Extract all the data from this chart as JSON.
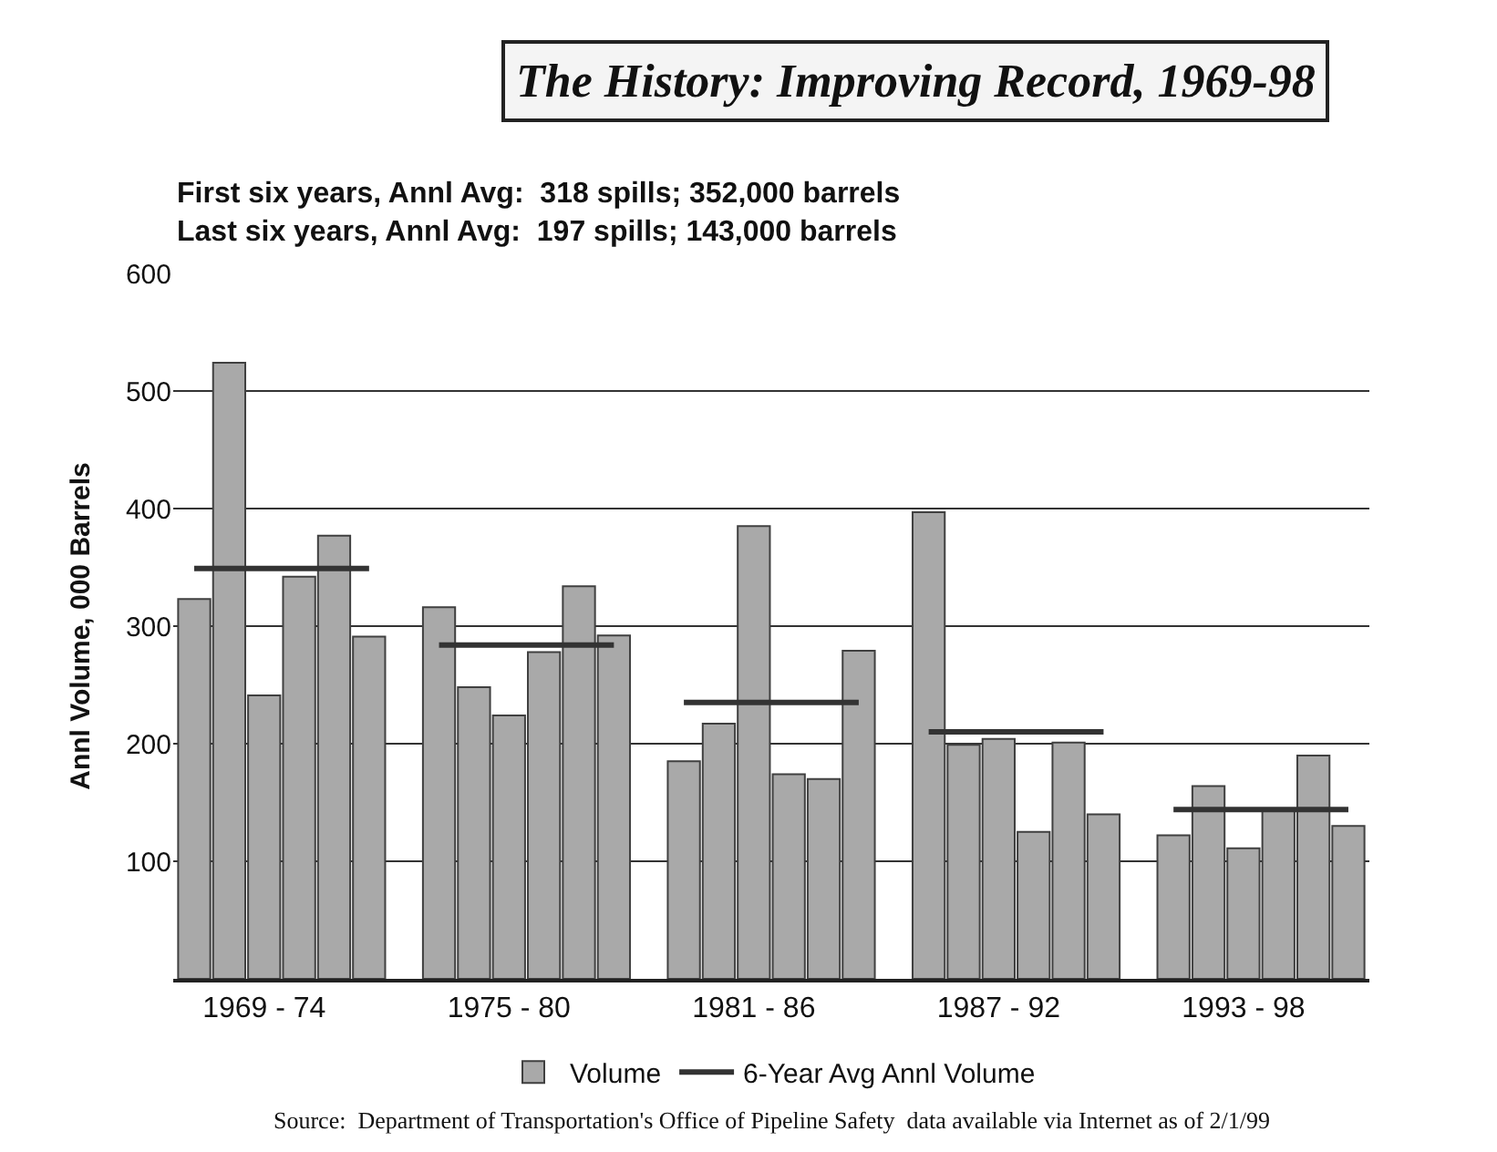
{
  "chart_data": {
    "type": "bar",
    "title": "The History: Improving Record, 1969-98",
    "subtitle": "First six years, Annl Avg:  318 spills; 352,000 barrels\nLast six years, Annl Avg:  197 spills; 143,000 barrels",
    "ylabel": "Annl Volume, 000 Barrels",
    "categories": [
      null,
      null,
      "1969 - 74",
      null,
      null,
      null,
      null,
      null,
      null,
      "1975 - 80",
      null,
      null,
      null,
      null,
      null,
      null,
      "1981 - 86",
      null,
      null,
      null,
      null,
      null,
      null,
      "1987 - 92",
      null,
      null,
      null,
      null,
      null,
      null,
      "1993 - 98",
      null,
      null,
      null
    ],
    "series": [
      {
        "name": "Volume",
        "color": "#a9a9a9",
        "values": [
          323,
          524,
          241,
          342,
          377,
          291,
          null,
          316,
          248,
          224,
          278,
          334,
          292,
          null,
          185,
          217,
          385,
          174,
          170,
          279,
          null,
          397,
          199,
          204,
          125,
          201,
          140,
          null,
          122,
          164,
          111,
          144,
          190,
          130
        ]
      },
      {
        "name": "6-Year Avg Annl Volume",
        "type": "line",
        "color": "#333333",
        "values": [
          349,
          349,
          349,
          349,
          349,
          349,
          null,
          null,
          null,
          null,
          null,
          null,
          null,
          null,
          null,
          null,
          null,
          null,
          null,
          null,
          null,
          null,
          null,
          null,
          null,
          null,
          null,
          null,
          null,
          null,
          null,
          null,
          null,
          null
        ]
      },
      {
        "type": "line",
        "color": "#333333",
        "values": [
          null,
          null,
          null,
          null,
          null,
          null,
          null,
          284,
          284,
          284,
          284,
          284,
          284,
          null,
          null,
          null,
          null,
          null,
          null,
          null,
          null,
          null,
          null,
          null,
          null,
          null,
          null,
          null,
          null,
          null,
          null,
          null,
          null,
          null
        ]
      },
      {
        "type": "line",
        "color": "#333333",
        "values": [
          null,
          null,
          null,
          null,
          null,
          null,
          null,
          null,
          null,
          null,
          null,
          null,
          null,
          null,
          235,
          235,
          235,
          235,
          235,
          235,
          null,
          null,
          null,
          null,
          null,
          null,
          null,
          null,
          null,
          null,
          null,
          null,
          null,
          null
        ]
      },
      {
        "type": "line",
        "color": "#333333",
        "values": [
          null,
          null,
          null,
          null,
          null,
          null,
          null,
          null,
          null,
          null,
          null,
          null,
          null,
          null,
          null,
          null,
          null,
          null,
          null,
          null,
          null,
          210,
          210,
          210,
          210,
          210,
          210,
          null,
          null,
          null,
          null,
          null,
          null,
          null
        ]
      },
      {
        "type": "line",
        "color": "#333333",
        "values": [
          null,
          null,
          null,
          null,
          null,
          null,
          null,
          null,
          null,
          null,
          null,
          null,
          null,
          null,
          null,
          null,
          null,
          null,
          null,
          null,
          null,
          null,
          null,
          null,
          null,
          null,
          null,
          null,
          144,
          144,
          144,
          144,
          144,
          144
        ]
      }
    ],
    "ylim": [
      0,
      600
    ],
    "yticks": [
      100,
      200,
      300,
      400,
      500,
      600
    ],
    "grid": "y",
    "legend": "bottom",
    "marker": "none",
    "line_style": "solid",
    "annotations": [
      "Source:  Department of Transportation's Office of Pipeline Safety  data available via Internet as of 2/1/99"
    ]
  }
}
